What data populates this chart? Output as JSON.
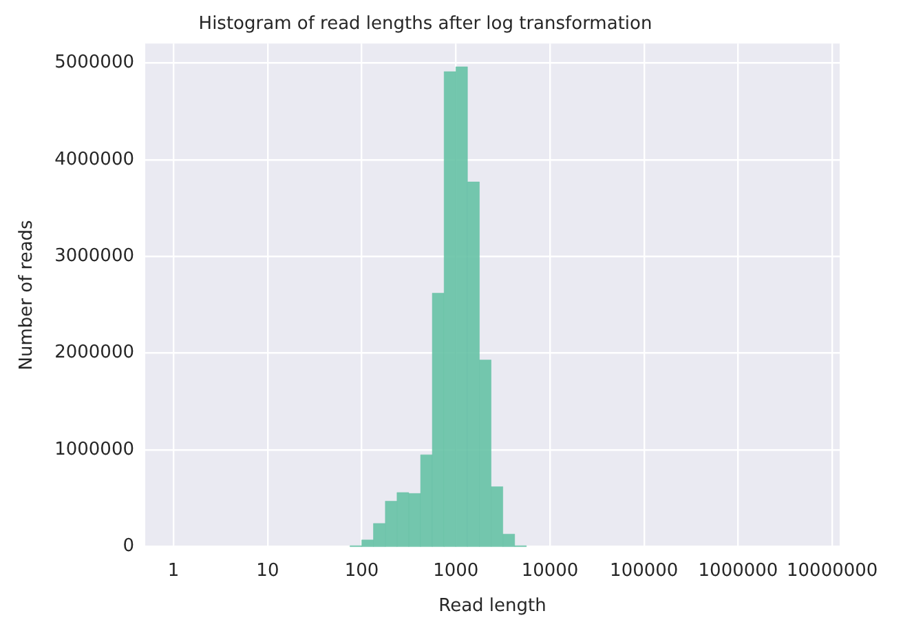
{
  "chart_data": {
    "type": "histogram",
    "title": "Histogram of read lengths after log transformation",
    "xlabel": "Read length",
    "ylabel": "Number of reads",
    "bins": [
      75,
      100,
      133,
      178,
      237,
      316,
      422,
      562,
      750,
      1000,
      1330,
      1780,
      2370,
      3160,
      4220,
      5620
    ],
    "values": [
      10000,
      70000,
      240000,
      470000,
      560000,
      550000,
      950000,
      2620000,
      4910000,
      4960000,
      3770000,
      1930000,
      620000,
      130000,
      10000
    ],
    "color": "#66c2a5",
    "log": "x",
    "xlim": [
      0.5,
      12000000
    ],
    "xticks": [
      1,
      10,
      100,
      1000,
      10000,
      100000,
      1000000,
      10000000
    ],
    "ylim": [
      0,
      5200000
    ],
    "yticks": [
      0,
      1000000,
      2000000,
      3000000,
      4000000,
      5000000
    ],
    "grid": true
  }
}
